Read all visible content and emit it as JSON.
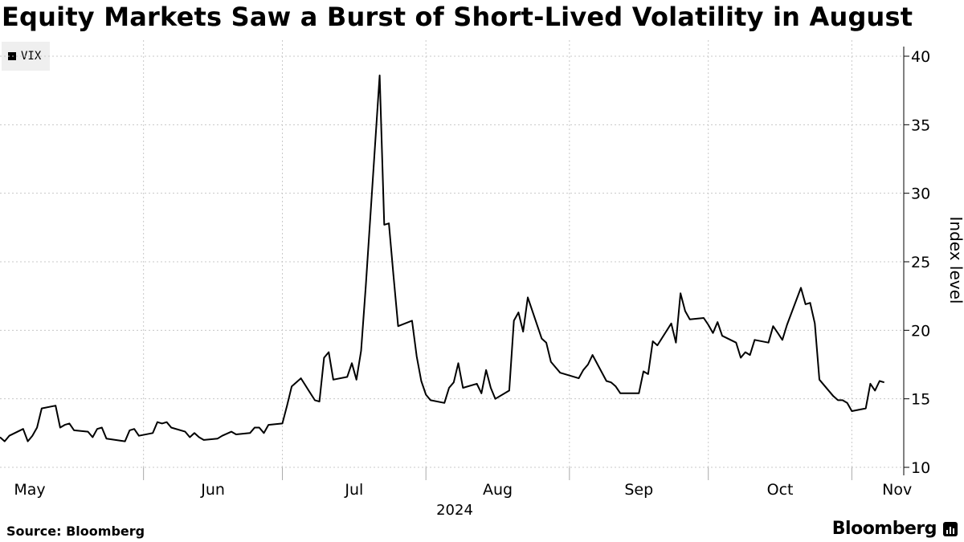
{
  "title": "Equity Markets Saw a Burst of Short-Lived Volatility in August",
  "source": "Source: Bloomberg",
  "brand": "Bloomberg",
  "brand_icon": "bloomberg-terminal-icon",
  "colors": {
    "line": "#000000",
    "grid": "#c8c8c8",
    "legend_bg": "#efefef"
  },
  "chart_data": {
    "type": "line",
    "title": "Equity Markets Saw a Burst of Short-Lived Volatility in August",
    "ylabel": "Index level",
    "xlabel": "2024",
    "ylim": [
      10,
      40
    ],
    "yticks": [
      10,
      15,
      20,
      25,
      30,
      35,
      40
    ],
    "xticks": [
      "May",
      "Jun",
      "Jul",
      "Aug",
      "Sep",
      "Oct",
      "Nov"
    ],
    "x_range": [
      "2024-05-01",
      "2024-11-11"
    ],
    "grid": true,
    "legend": {
      "position": "top-left",
      "entries": [
        "VIX"
      ]
    },
    "series": [
      {
        "name": "VIX",
        "points": [
          [
            "2024-05-01",
            12.2
          ],
          [
            "2024-05-02",
            11.9
          ],
          [
            "2024-05-03",
            12.3
          ],
          [
            "2024-05-06",
            12.8
          ],
          [
            "2024-05-07",
            11.9
          ],
          [
            "2024-05-08",
            12.3
          ],
          [
            "2024-05-09",
            12.9
          ],
          [
            "2024-05-10",
            14.3
          ],
          [
            "2024-05-13",
            14.5
          ],
          [
            "2024-05-14",
            12.9
          ],
          [
            "2024-05-15",
            13.1
          ],
          [
            "2024-05-16",
            13.2
          ],
          [
            "2024-05-17",
            12.7
          ],
          [
            "2024-05-20",
            12.6
          ],
          [
            "2024-05-21",
            12.2
          ],
          [
            "2024-05-22",
            12.8
          ],
          [
            "2024-05-23",
            12.9
          ],
          [
            "2024-05-24",
            12.1
          ],
          [
            "2024-05-28",
            11.9
          ],
          [
            "2024-05-29",
            12.7
          ],
          [
            "2024-05-30",
            12.8
          ],
          [
            "2024-05-31",
            12.3
          ],
          [
            "2024-06-03",
            12.5
          ],
          [
            "2024-06-04",
            13.3
          ],
          [
            "2024-06-05",
            13.2
          ],
          [
            "2024-06-06",
            13.3
          ],
          [
            "2024-06-07",
            12.9
          ],
          [
            "2024-06-10",
            12.6
          ],
          [
            "2024-06-11",
            12.2
          ],
          [
            "2024-06-12",
            12.5
          ],
          [
            "2024-06-13",
            12.2
          ],
          [
            "2024-06-14",
            12.0
          ],
          [
            "2024-06-17",
            12.1
          ],
          [
            "2024-06-18",
            12.3
          ],
          [
            "2024-06-20",
            12.6
          ],
          [
            "2024-06-21",
            12.4
          ],
          [
            "2024-06-24",
            12.5
          ],
          [
            "2024-06-25",
            12.9
          ],
          [
            "2024-06-26",
            12.9
          ],
          [
            "2024-06-27",
            12.5
          ],
          [
            "2024-06-28",
            13.1
          ],
          [
            "2024-07-01",
            13.2
          ],
          [
            "2024-07-02",
            14.5
          ],
          [
            "2024-07-03",
            15.9
          ],
          [
            "2024-07-05",
            16.5
          ],
          [
            "2024-07-08",
            14.9
          ],
          [
            "2024-07-09",
            14.8
          ],
          [
            "2024-07-10",
            18.0
          ],
          [
            "2024-07-11",
            18.4
          ],
          [
            "2024-07-12",
            16.4
          ],
          [
            "2024-07-15",
            16.6
          ],
          [
            "2024-07-16",
            17.6
          ],
          [
            "2024-07-17",
            16.4
          ],
          [
            "2024-07-18",
            18.5
          ],
          [
            "2024-07-19",
            23.2
          ],
          [
            "2024-07-22",
            38.6
          ],
          [
            "2024-07-23",
            27.7
          ],
          [
            "2024-07-24",
            27.8
          ],
          [
            "2024-07-25",
            24.0
          ],
          [
            "2024-07-26",
            20.3
          ],
          [
            "2024-07-29",
            20.7
          ],
          [
            "2024-07-30",
            18.1
          ],
          [
            "2024-07-31",
            16.3
          ],
          [
            "2024-08-01",
            15.3
          ],
          [
            "2024-08-02",
            14.9
          ],
          [
            "2024-08-05",
            14.7
          ],
          [
            "2024-08-06",
            15.8
          ],
          [
            "2024-08-07",
            16.2
          ],
          [
            "2024-08-08",
            17.6
          ],
          [
            "2024-08-09",
            15.8
          ],
          [
            "2024-08-12",
            16.1
          ],
          [
            "2024-08-13",
            15.4
          ],
          [
            "2024-08-14",
            17.1
          ],
          [
            "2024-08-15",
            15.8
          ],
          [
            "2024-08-16",
            15.0
          ],
          [
            "2024-08-19",
            15.6
          ],
          [
            "2024-08-20",
            20.7
          ],
          [
            "2024-08-21",
            21.3
          ],
          [
            "2024-08-22",
            19.9
          ],
          [
            "2024-08-23",
            22.4
          ],
          [
            "2024-08-26",
            19.4
          ],
          [
            "2024-08-27",
            19.1
          ],
          [
            "2024-08-28",
            17.7
          ],
          [
            "2024-08-29",
            17.3
          ],
          [
            "2024-08-30",
            16.9
          ],
          [
            "2024-09-03",
            16.5
          ],
          [
            "2024-09-04",
            17.1
          ],
          [
            "2024-09-05",
            17.5
          ],
          [
            "2024-09-06",
            18.2
          ],
          [
            "2024-09-09",
            16.3
          ],
          [
            "2024-09-10",
            16.2
          ],
          [
            "2024-09-11",
            15.9
          ],
          [
            "2024-09-12",
            15.4
          ],
          [
            "2024-09-13",
            15.4
          ],
          [
            "2024-09-16",
            15.4
          ],
          [
            "2024-09-17",
            17.0
          ],
          [
            "2024-09-18",
            16.8
          ],
          [
            "2024-09-19",
            19.2
          ],
          [
            "2024-09-20",
            18.9
          ],
          [
            "2024-09-23",
            20.5
          ],
          [
            "2024-09-24",
            19.1
          ],
          [
            "2024-09-25",
            22.7
          ],
          [
            "2024-09-26",
            21.4
          ],
          [
            "2024-09-27",
            20.8
          ],
          [
            "2024-09-30",
            20.9
          ],
          [
            "2024-10-01",
            20.4
          ],
          [
            "2024-10-02",
            19.8
          ],
          [
            "2024-10-03",
            20.6
          ],
          [
            "2024-10-04",
            19.6
          ],
          [
            "2024-10-07",
            19.1
          ],
          [
            "2024-10-08",
            18.0
          ],
          [
            "2024-10-09",
            18.4
          ],
          [
            "2024-10-10",
            18.2
          ],
          [
            "2024-10-11",
            19.3
          ],
          [
            "2024-10-14",
            19.1
          ],
          [
            "2024-10-15",
            20.3
          ],
          [
            "2024-10-16",
            19.8
          ],
          [
            "2024-10-17",
            19.3
          ],
          [
            "2024-10-18",
            20.4
          ],
          [
            "2024-10-21",
            23.1
          ],
          [
            "2024-10-22",
            21.9
          ],
          [
            "2024-10-23",
            22.0
          ],
          [
            "2024-10-24",
            20.5
          ],
          [
            "2024-10-25",
            16.4
          ],
          [
            "2024-10-28",
            15.2
          ],
          [
            "2024-10-29",
            14.9
          ],
          [
            "2024-10-30",
            14.9
          ],
          [
            "2024-10-31",
            14.7
          ],
          [
            "2024-11-01",
            14.1
          ],
          [
            "2024-11-04",
            14.3
          ],
          [
            "2024-11-05",
            16.1
          ],
          [
            "2024-11-06",
            15.6
          ],
          [
            "2024-11-07",
            16.3
          ],
          [
            "2024-11-08",
            16.2
          ]
        ]
      }
    ]
  }
}
